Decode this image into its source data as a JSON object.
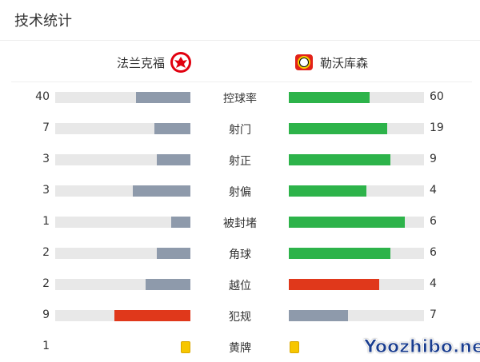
{
  "title": "技术统计",
  "home": {
    "name": "法兰克福",
    "logo": "eintracht-frankfurt-logo"
  },
  "away": {
    "name": "勒沃库森",
    "logo": "bayer-leverkusen-logo"
  },
  "colors": {
    "leader": "#2db34a",
    "trailer": "#8e9aab",
    "warning": "#e0381b",
    "track": "#e8e8e8",
    "yellow": "#f7c600"
  },
  "stats": [
    {
      "name": "控球率",
      "home": 40,
      "away": 60,
      "home_color": "#8e9aab",
      "away_color": "#2db34a"
    },
    {
      "name": "射门",
      "home": 7,
      "away": 19,
      "home_color": "#8e9aab",
      "away_color": "#2db34a"
    },
    {
      "name": "射正",
      "home": 3,
      "away": 9,
      "home_color": "#8e9aab",
      "away_color": "#2db34a"
    },
    {
      "name": "射偏",
      "home": 3,
      "away": 4,
      "home_color": "#8e9aab",
      "away_color": "#2db34a"
    },
    {
      "name": "被封堵",
      "home": 1,
      "away": 6,
      "home_color": "#8e9aab",
      "away_color": "#2db34a"
    },
    {
      "name": "角球",
      "home": 2,
      "away": 6,
      "home_color": "#8e9aab",
      "away_color": "#2db34a"
    },
    {
      "name": "越位",
      "home": 2,
      "away": 4,
      "home_color": "#8e9aab",
      "away_color": "#e0381b"
    },
    {
      "name": "犯规",
      "home": 9,
      "away": 7,
      "home_color": "#e0381b",
      "away_color": "#8e9aab"
    }
  ],
  "yellow": {
    "name": "黄牌",
    "home": 1
  },
  "watermark": "Yoozhibo.net"
}
